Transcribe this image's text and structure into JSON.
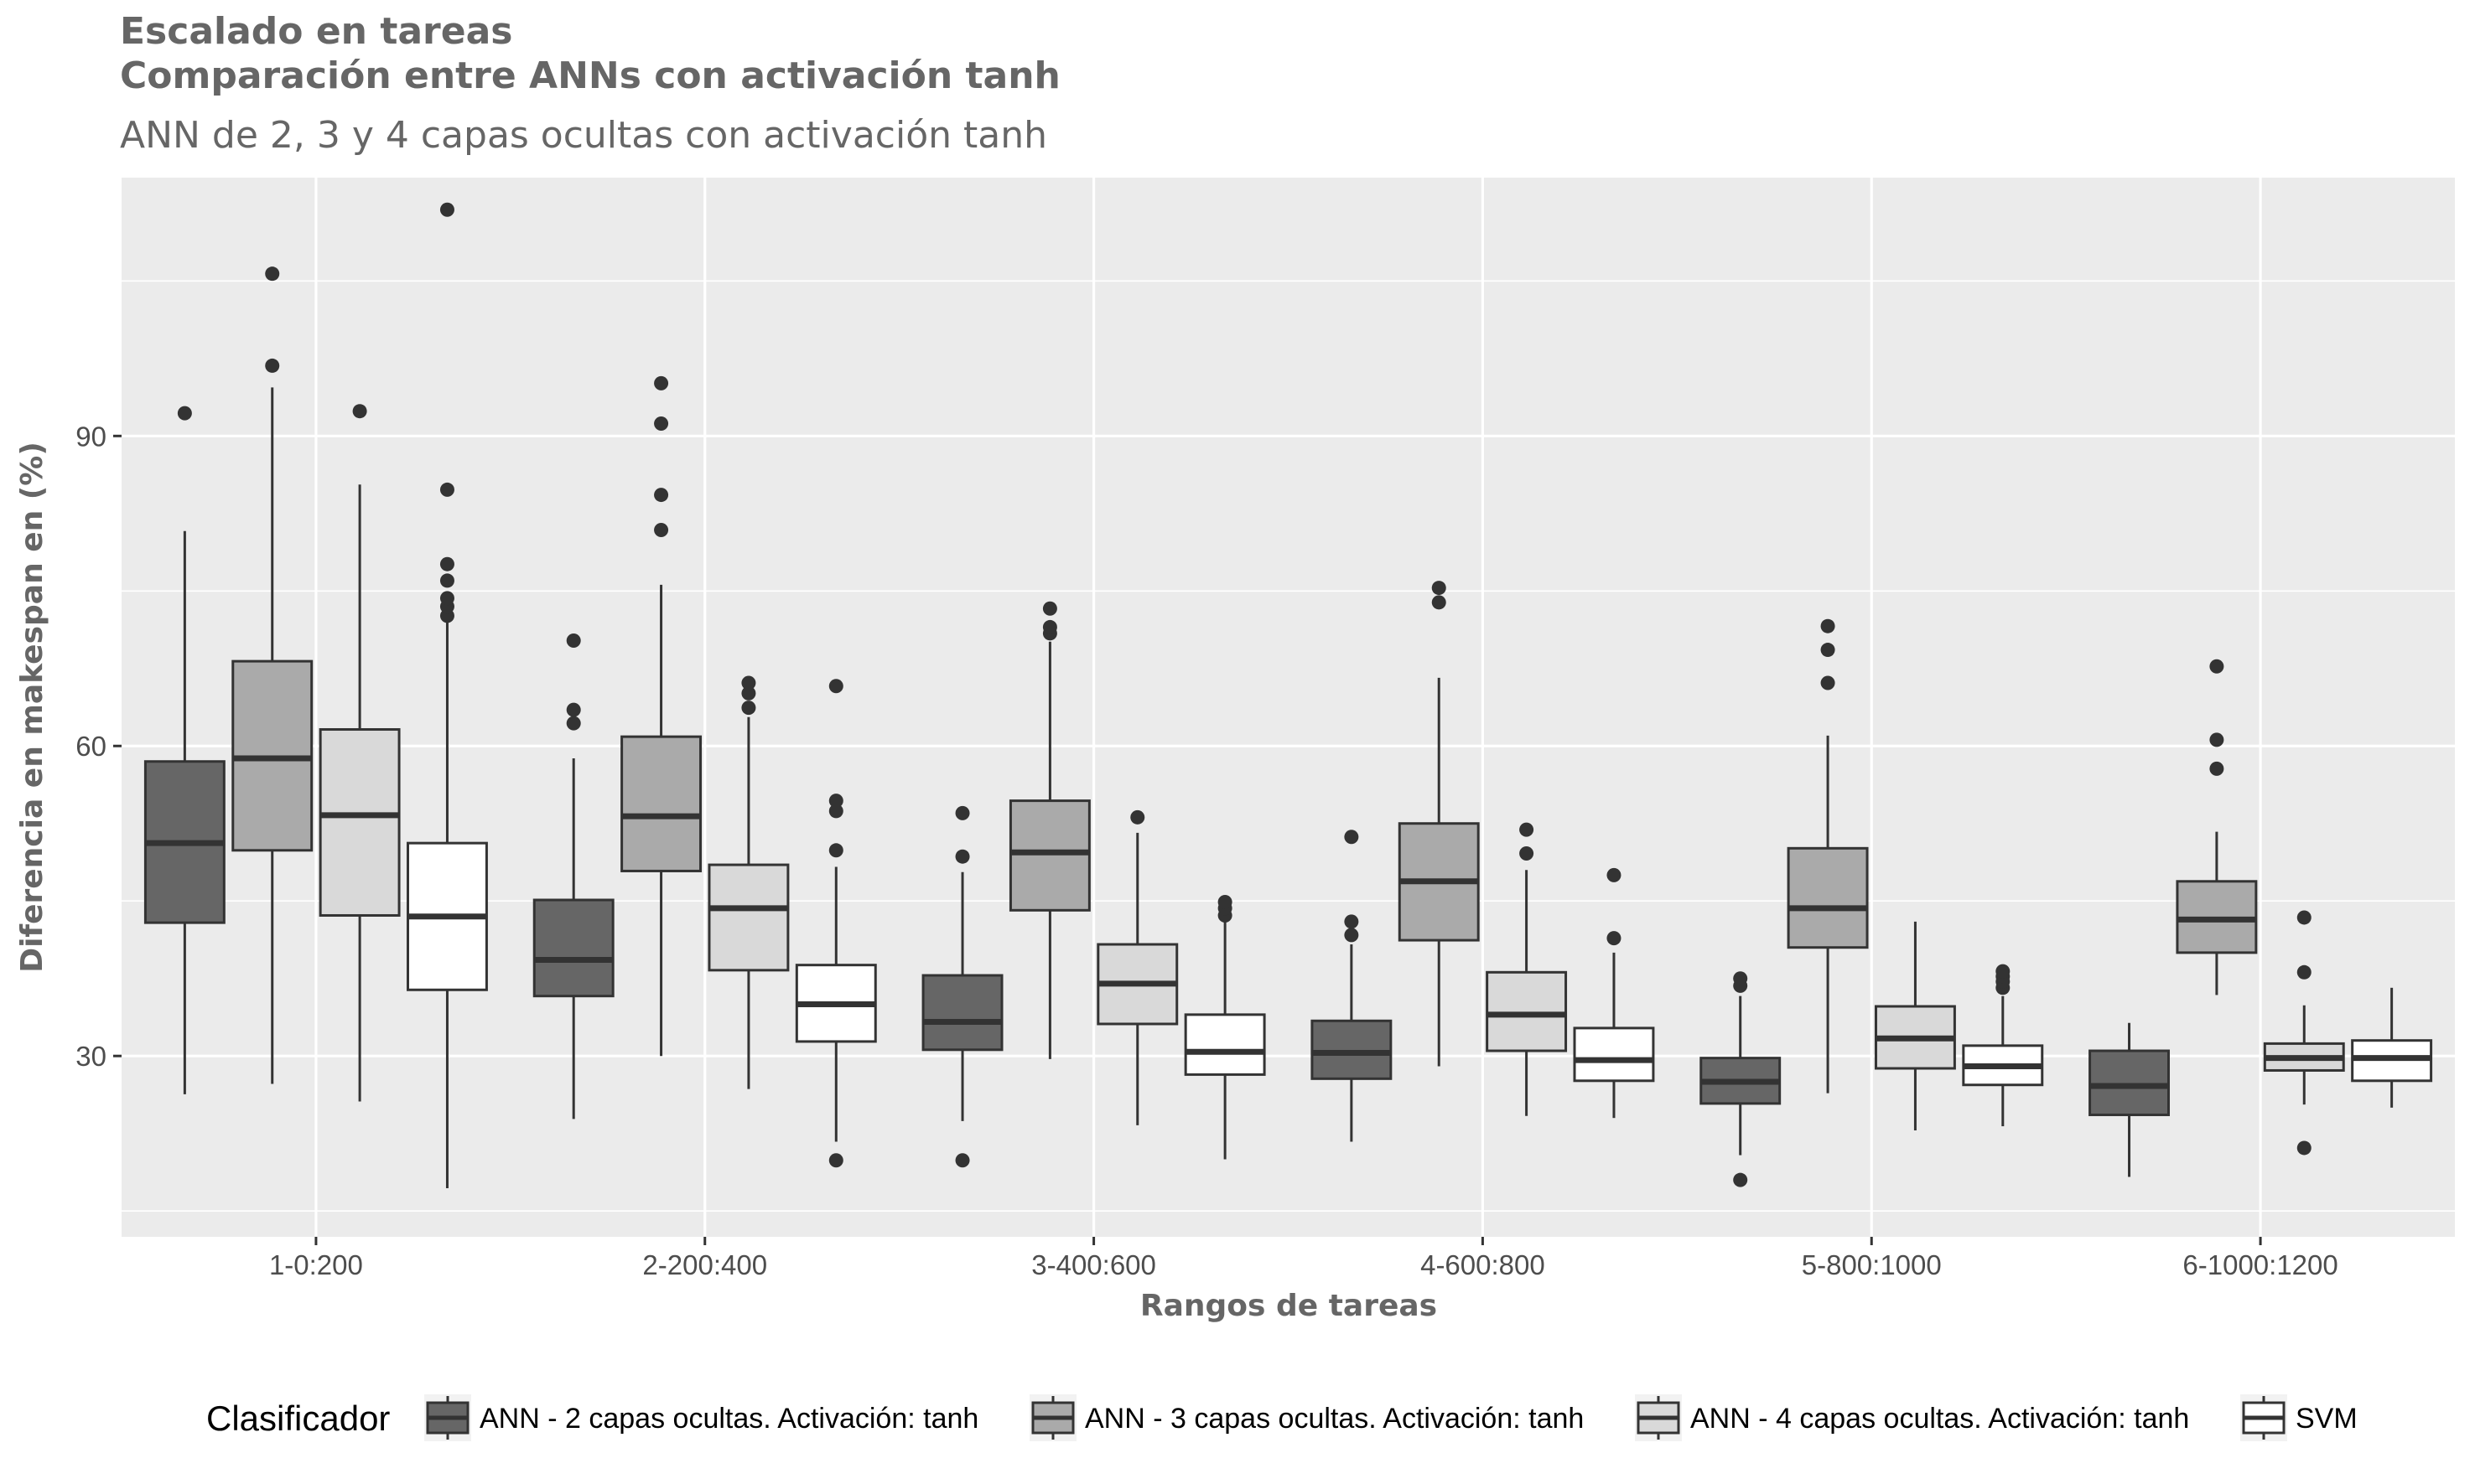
{
  "chart_data": {
    "type": "boxplot",
    "title_lines": [
      "Escalado en tareas",
      "Comparación entre ANNs con activación tanh"
    ],
    "subtitle": "ANN de 2, 3 y 4 capas ocultas con activación tanh",
    "xlabel": "Rangos de tareas",
    "ylabel": "Diferencia en makespan en (%)",
    "ylim": [
      12.5,
      115
    ],
    "yticks": [
      30,
      60,
      90
    ],
    "grid": true,
    "legend_title": "Clasificador",
    "legend_position": "bottom",
    "categories": [
      "1-0:200",
      "2-200:400",
      "3-400:600",
      "4-600:800",
      "5-800:1000",
      "6-1000:1200"
    ],
    "series": [
      {
        "name": "ANN - 2 capas ocultas. Activación: tanh",
        "color": "#666666",
        "boxes": [
          {
            "min": 26.3,
            "q1": 42.9,
            "median": 50.6,
            "q3": 58.5,
            "max": 80.8,
            "outliers": [
              92.2
            ]
          },
          {
            "min": 23.9,
            "q1": 35.8,
            "median": 39.3,
            "q3": 45.1,
            "max": 58.8,
            "outliers": [
              62.2,
              63.5,
              70.2
            ]
          },
          {
            "min": 23.7,
            "q1": 30.6,
            "median": 33.3,
            "q3": 37.8,
            "max": 47.8,
            "outliers": [
              19.9,
              49.3,
              53.5
            ]
          },
          {
            "min": 21.7,
            "q1": 27.8,
            "median": 30.3,
            "q3": 33.4,
            "max": 40.8,
            "outliers": [
              41.7,
              43.0,
              51.2
            ]
          },
          {
            "min": 20.4,
            "q1": 25.4,
            "median": 27.5,
            "q3": 29.8,
            "max": 35.8,
            "outliers": [
              18.0,
              36.8,
              37.5
            ]
          },
          {
            "min": 18.3,
            "q1": 24.3,
            "median": 27.1,
            "q3": 30.5,
            "max": 33.2,
            "outliers": []
          }
        ]
      },
      {
        "name": "ANN - 3 capas ocultas. Activación: tanh",
        "color": "#aaaaaa",
        "boxes": [
          {
            "min": 27.3,
            "q1": 49.9,
            "median": 58.8,
            "q3": 68.2,
            "max": 94.7,
            "outliers": [
              96.8,
              105.7
            ]
          },
          {
            "min": 30.0,
            "q1": 47.9,
            "median": 53.2,
            "q3": 60.9,
            "max": 75.6,
            "outliers": [
              80.9,
              84.3,
              91.2,
              95.1
            ]
          },
          {
            "min": 29.7,
            "q1": 44.1,
            "median": 49.7,
            "q3": 54.7,
            "max": 70.1,
            "outliers": [
              70.9,
              71.5,
              73.3
            ]
          },
          {
            "min": 29.0,
            "q1": 41.2,
            "median": 46.9,
            "q3": 52.5,
            "max": 66.6,
            "outliers": [
              73.9,
              75.3
            ]
          },
          {
            "min": 26.4,
            "q1": 40.5,
            "median": 44.3,
            "q3": 50.1,
            "max": 61.0,
            "outliers": [
              66.1,
              69.3,
              71.6
            ]
          },
          {
            "min": 35.9,
            "q1": 40.0,
            "median": 43.2,
            "q3": 46.9,
            "max": 51.7,
            "outliers": [
              57.8,
              60.6,
              67.7
            ]
          }
        ]
      },
      {
        "name": "ANN - 4 capas ocultas. Activación: tanh",
        "color": "#d9d9d9",
        "boxes": [
          {
            "min": 25.6,
            "q1": 43.6,
            "median": 53.3,
            "q3": 61.6,
            "max": 85.3,
            "outliers": [
              92.4
            ]
          },
          {
            "min": 26.8,
            "q1": 38.3,
            "median": 44.3,
            "q3": 48.5,
            "max": 62.8,
            "outliers": [
              63.7,
              65.1,
              66.1
            ]
          },
          {
            "min": 23.3,
            "q1": 33.1,
            "median": 37.0,
            "q3": 40.8,
            "max": 51.6,
            "outliers": [
              53.1
            ]
          },
          {
            "min": 24.2,
            "q1": 30.5,
            "median": 34.0,
            "q3": 38.1,
            "max": 48.0,
            "outliers": [
              49.6,
              51.9
            ]
          },
          {
            "min": 22.8,
            "q1": 28.8,
            "median": 31.7,
            "q3": 34.8,
            "max": 43.0,
            "outliers": []
          },
          {
            "min": 25.3,
            "q1": 28.6,
            "median": 29.8,
            "q3": 31.2,
            "max": 34.9,
            "outliers": [
              21.1,
              38.1,
              43.4
            ]
          }
        ]
      },
      {
        "name": "SVM",
        "color": "#ffffff",
        "boxes": [
          {
            "min": 17.2,
            "q1": 36.4,
            "median": 43.5,
            "q3": 50.6,
            "max": 72.0,
            "outliers": [
              72.6,
              73.5,
              74.3,
              76.0,
              77.6,
              84.8,
              111.9
            ]
          },
          {
            "min": 21.7,
            "q1": 31.4,
            "median": 35.0,
            "q3": 38.8,
            "max": 48.3,
            "outliers": [
              19.9,
              49.9,
              53.7,
              54.7,
              65.8
            ]
          },
          {
            "min": 20.0,
            "q1": 28.2,
            "median": 30.4,
            "q3": 34.0,
            "max": 43.0,
            "outliers": [
              43.6,
              44.3,
              44.9
            ]
          },
          {
            "min": 24.0,
            "q1": 27.6,
            "median": 29.6,
            "q3": 32.7,
            "max": 40.0,
            "outliers": [
              41.4,
              47.5
            ]
          },
          {
            "min": 23.2,
            "q1": 27.2,
            "median": 29.0,
            "q3": 31.0,
            "max": 35.8,
            "outliers": [
              36.6,
              37.2,
              37.7,
              38.2
            ]
          },
          {
            "min": 25.0,
            "q1": 27.6,
            "median": 29.8,
            "q3": 31.5,
            "max": 36.6,
            "outliers": []
          }
        ]
      }
    ]
  }
}
